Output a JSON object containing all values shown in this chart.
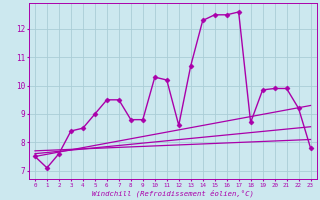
{
  "xlabel": "Windchill (Refroidissement éolien,°C)",
  "bg_color": "#cce8ef",
  "grid_color": "#aacdd6",
  "line_color": "#aa00aa",
  "x_ticks": [
    0,
    1,
    2,
    3,
    4,
    5,
    6,
    7,
    8,
    9,
    10,
    11,
    12,
    13,
    14,
    15,
    16,
    17,
    18,
    19,
    20,
    21,
    22,
    23
  ],
  "ylim": [
    6.7,
    12.9
  ],
  "xlim": [
    -0.5,
    23.5
  ],
  "main_series": {
    "x": [
      0,
      1,
      2,
      3,
      4,
      5,
      6,
      7,
      8,
      9,
      10,
      11,
      12,
      13,
      14,
      15,
      16,
      17,
      18,
      19,
      20,
      21,
      22,
      23
    ],
    "y": [
      7.5,
      7.1,
      7.6,
      8.4,
      8.5,
      9.0,
      9.5,
      9.5,
      8.8,
      8.8,
      10.3,
      10.2,
      8.6,
      10.7,
      12.3,
      12.5,
      12.5,
      12.6,
      8.7,
      9.85,
      9.9,
      9.9,
      9.2,
      7.8
    ]
  },
  "trend_lines": [
    {
      "x": [
        0,
        23
      ],
      "y": [
        7.5,
        9.3
      ]
    },
    {
      "x": [
        0,
        23
      ],
      "y": [
        7.6,
        8.55
      ]
    },
    {
      "x": [
        0,
        23
      ],
      "y": [
        7.7,
        8.1
      ]
    }
  ]
}
